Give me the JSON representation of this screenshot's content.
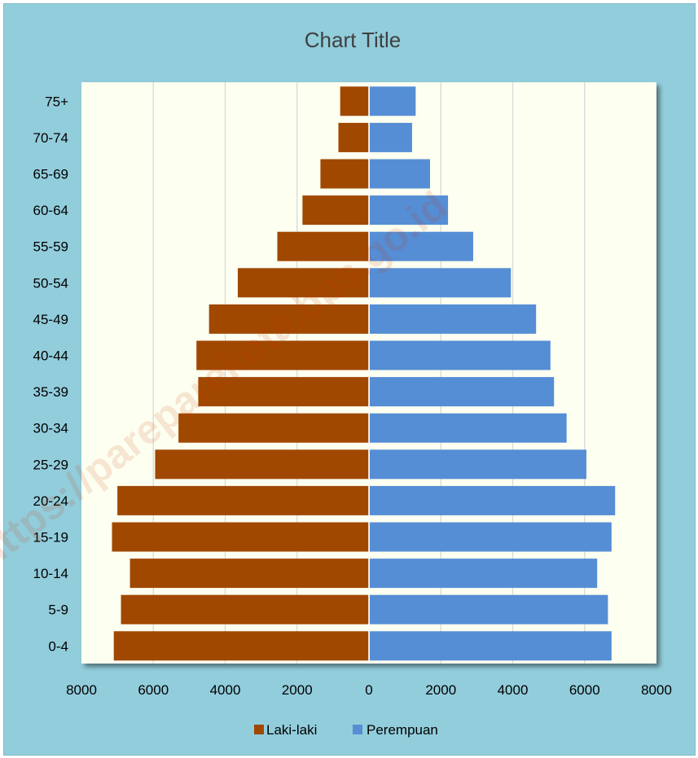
{
  "chart_data": {
    "type": "bar",
    "orientation": "horizontal",
    "subtype": "population-pyramid",
    "title": "Chart Title",
    "categories": [
      "0-4",
      "5-9",
      "10-14",
      "15-19",
      "20-24",
      "25-29",
      "30-34",
      "35-39",
      "40-44",
      "45-49",
      "50-54",
      "55-59",
      "60-64",
      "65-69",
      "70-74",
      "75+"
    ],
    "series": [
      {
        "name": "Laki-laki",
        "color": "#a04800",
        "side": "left",
        "values": [
          7100,
          6900,
          6650,
          7150,
          7000,
          5950,
          5300,
          4750,
          4800,
          4450,
          3650,
          2550,
          1850,
          1350,
          850,
          800
        ]
      },
      {
        "name": "Perempuan",
        "color": "#558ed5",
        "side": "right",
        "values": [
          6750,
          6650,
          6350,
          6750,
          6850,
          6050,
          5500,
          5150,
          5050,
          4650,
          3950,
          2900,
          2200,
          1700,
          1200,
          1300
        ]
      }
    ],
    "x_ticks": [
      "8000",
      "6000",
      "4000",
      "2000",
      "0",
      "2000",
      "4000",
      "6000",
      "8000"
    ],
    "xlim": [
      -8000,
      8000
    ],
    "grid": "vertical",
    "legend_position": "bottom",
    "watermark": "https://pareparekota.bps.go.id",
    "colors": {
      "frame": "#92cddc",
      "plot_background": "#fdfff0",
      "title": "#404040"
    }
  }
}
